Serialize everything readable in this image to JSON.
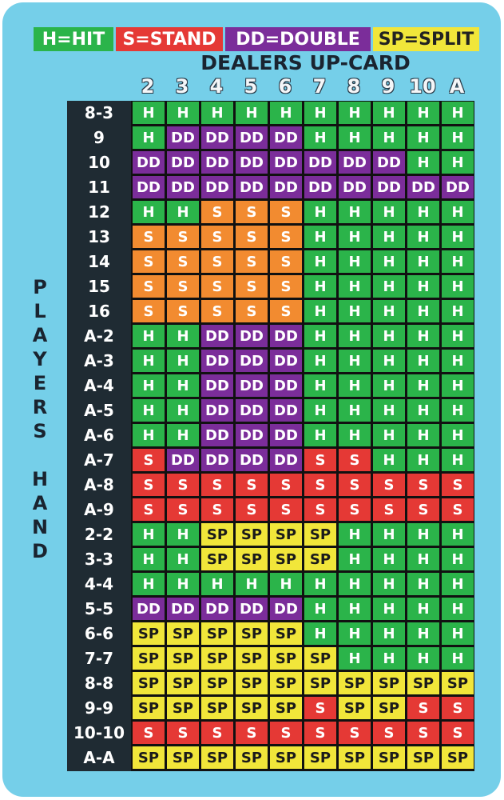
{
  "legend": {
    "hit": "H=HIT",
    "stand": "S=STAND",
    "double": "DD=DOUBLE",
    "split": "SP=SPLIT"
  },
  "title": "DEALERS UP-CARD",
  "dealer_cards": [
    "2",
    "3",
    "4",
    "5",
    "6",
    "7",
    "8",
    "9",
    "10",
    "A"
  ],
  "side_label_letters": [
    "P",
    "L",
    "A",
    "Y",
    "E",
    "R",
    "S",
    "",
    "H",
    "A",
    "N",
    "D"
  ],
  "colors": {
    "hit": "#2bb44a",
    "stand_red": "#e53935",
    "stand_orange": "#f28b30",
    "double": "#7b2d9a",
    "split": "#f1e63a"
  },
  "rows": [
    {
      "hand": "8-3",
      "actions": [
        "H",
        "H",
        "H",
        "H",
        "H",
        "H",
        "H",
        "H",
        "H",
        "H"
      ]
    },
    {
      "hand": "9",
      "actions": [
        "H",
        "DD",
        "DD",
        "DD",
        "DD",
        "H",
        "H",
        "H",
        "H",
        "H"
      ]
    },
    {
      "hand": "10",
      "actions": [
        "DD",
        "DD",
        "DD",
        "DD",
        "DD",
        "DD",
        "DD",
        "DD",
        "H",
        "H"
      ]
    },
    {
      "hand": "11",
      "actions": [
        "DD",
        "DD",
        "DD",
        "DD",
        "DD",
        "DD",
        "DD",
        "DD",
        "DD",
        "DD"
      ]
    },
    {
      "hand": "12",
      "actions": [
        "H",
        "H",
        "S",
        "S",
        "S",
        "H",
        "H",
        "H",
        "H",
        "H"
      ]
    },
    {
      "hand": "13",
      "actions": [
        "S",
        "S",
        "S",
        "S",
        "S",
        "H",
        "H",
        "H",
        "H",
        "H"
      ]
    },
    {
      "hand": "14",
      "actions": [
        "S",
        "S",
        "S",
        "S",
        "S",
        "H",
        "H",
        "H",
        "H",
        "H"
      ]
    },
    {
      "hand": "15",
      "actions": [
        "S",
        "S",
        "S",
        "S",
        "S",
        "H",
        "H",
        "H",
        "H",
        "H"
      ]
    },
    {
      "hand": "16",
      "actions": [
        "S",
        "S",
        "S",
        "S",
        "S",
        "H",
        "H",
        "H",
        "H",
        "H"
      ]
    },
    {
      "hand": "A-2",
      "actions": [
        "H",
        "H",
        "DD",
        "DD",
        "DD",
        "H",
        "H",
        "H",
        "H",
        "H"
      ]
    },
    {
      "hand": "A-3",
      "actions": [
        "H",
        "H",
        "DD",
        "DD",
        "DD",
        "H",
        "H",
        "H",
        "H",
        "H"
      ]
    },
    {
      "hand": "A-4",
      "actions": [
        "H",
        "H",
        "DD",
        "DD",
        "DD",
        "H",
        "H",
        "H",
        "H",
        "H"
      ]
    },
    {
      "hand": "A-5",
      "actions": [
        "H",
        "H",
        "DD",
        "DD",
        "DD",
        "H",
        "H",
        "H",
        "H",
        "H"
      ]
    },
    {
      "hand": "A-6",
      "actions": [
        "H",
        "H",
        "DD",
        "DD",
        "DD",
        "H",
        "H",
        "H",
        "H",
        "H"
      ]
    },
    {
      "hand": "A-7",
      "actions": [
        "S",
        "DD",
        "DD",
        "DD",
        "DD",
        "S",
        "S",
        "H",
        "H",
        "H"
      ]
    },
    {
      "hand": "A-8",
      "actions": [
        "S",
        "S",
        "S",
        "S",
        "S",
        "S",
        "S",
        "S",
        "S",
        "S"
      ]
    },
    {
      "hand": "A-9",
      "actions": [
        "S",
        "S",
        "S",
        "S",
        "S",
        "S",
        "S",
        "S",
        "S",
        "S"
      ]
    },
    {
      "hand": "2-2",
      "actions": [
        "H",
        "H",
        "SP",
        "SP",
        "SP",
        "SP",
        "H",
        "H",
        "H",
        "H"
      ]
    },
    {
      "hand": "3-3",
      "actions": [
        "H",
        "H",
        "SP",
        "SP",
        "SP",
        "SP",
        "H",
        "H",
        "H",
        "H"
      ]
    },
    {
      "hand": "4-4",
      "actions": [
        "H",
        "H",
        "H",
        "H",
        "H",
        "H",
        "H",
        "H",
        "H",
        "H"
      ]
    },
    {
      "hand": "5-5",
      "actions": [
        "DD",
        "DD",
        "DD",
        "DD",
        "DD",
        "H",
        "H",
        "H",
        "H",
        "H"
      ]
    },
    {
      "hand": "6-6",
      "actions": [
        "SP",
        "SP",
        "SP",
        "SP",
        "SP",
        "H",
        "H",
        "H",
        "H",
        "H"
      ]
    },
    {
      "hand": "7-7",
      "actions": [
        "SP",
        "SP",
        "SP",
        "SP",
        "SP",
        "SP",
        "H",
        "H",
        "H",
        "H"
      ]
    },
    {
      "hand": "8-8",
      "actions": [
        "SP",
        "SP",
        "SP",
        "SP",
        "SP",
        "SP",
        "SP",
        "SP",
        "SP",
        "SP"
      ]
    },
    {
      "hand": "9-9",
      "actions": [
        "SP",
        "SP",
        "SP",
        "SP",
        "SP",
        "S",
        "SP",
        "SP",
        "S",
        "S"
      ]
    },
    {
      "hand": "10-10",
      "actions": [
        "S",
        "S",
        "S",
        "S",
        "S",
        "S",
        "S",
        "S",
        "S",
        "S"
      ]
    },
    {
      "hand": "A-A",
      "actions": [
        "SP",
        "SP",
        "SP",
        "SP",
        "SP",
        "SP",
        "SP",
        "SP",
        "SP",
        "SP"
      ]
    }
  ]
}
